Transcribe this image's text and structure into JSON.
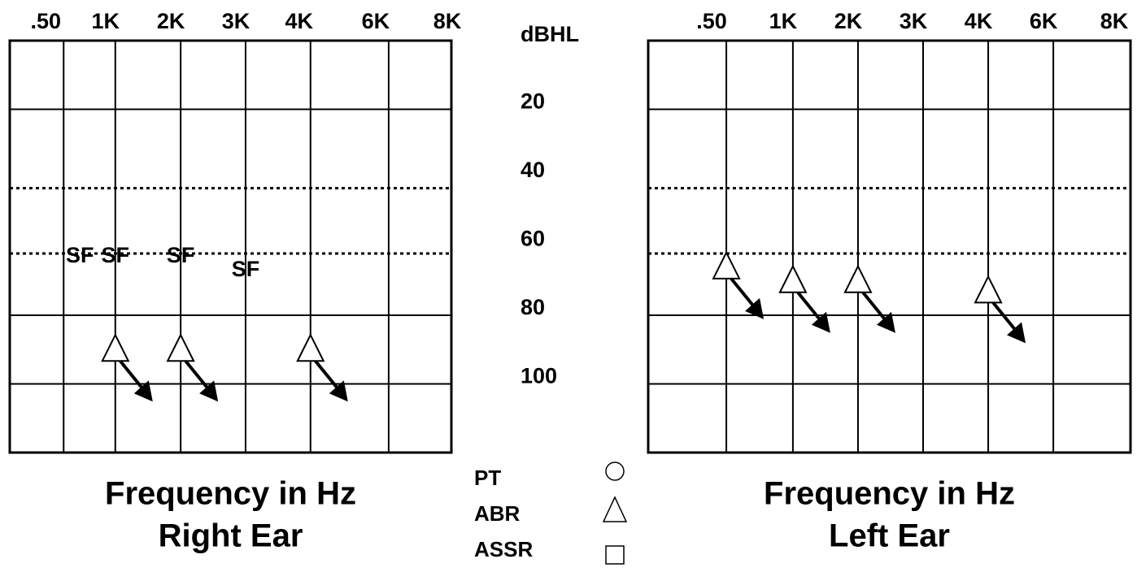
{
  "chart_data": [
    {
      "type": "audiogram",
      "x_label": "Frequency in Hz",
      "subtitle": "Right Ear",
      "categories": [
        ".50",
        "1K",
        "2K",
        "3K",
        "4K",
        "6K",
        "8K"
      ],
      "ylim": [
        0,
        120
      ],
      "grid_lines": [
        20,
        80,
        100
      ],
      "dotted_lines": [
        43,
        62
      ],
      "series": [
        {
          "marker": "triangle",
          "no_response": true,
          "values": [
            null,
            90,
            90,
            null,
            90,
            null,
            null
          ]
        },
        {
          "marker": "text",
          "values": [
            62,
            62,
            62,
            66,
            null,
            null,
            null
          ],
          "value_labels": [
            "SF",
            "SF",
            "SF",
            "SF",
            null,
            null,
            null
          ]
        }
      ]
    },
    {
      "type": "audiogram",
      "x_label": "Frequency in Hz",
      "subtitle": "Left Ear",
      "categories": [
        ".50",
        "1K",
        "2K",
        "3K",
        "4K",
        "6K",
        "8K"
      ],
      "ylim": [
        0,
        120
      ],
      "grid_lines": [
        20,
        80,
        100
      ],
      "dotted_lines": [
        43,
        62
      ],
      "series": [
        {
          "marker": "triangle",
          "no_response": true,
          "values": [
            66,
            70,
            70,
            null,
            73,
            null,
            null
          ]
        }
      ]
    }
  ],
  "axis": {
    "label": "dBHL",
    "ylim": [
      0,
      120
    ],
    "yticks": [
      20,
      40,
      60,
      80,
      100
    ]
  },
  "legend": [
    {
      "name": "PT",
      "marker": "circle"
    },
    {
      "name": "ABR",
      "marker": "triangle"
    },
    {
      "name": "ASSR",
      "marker": "square"
    }
  ]
}
